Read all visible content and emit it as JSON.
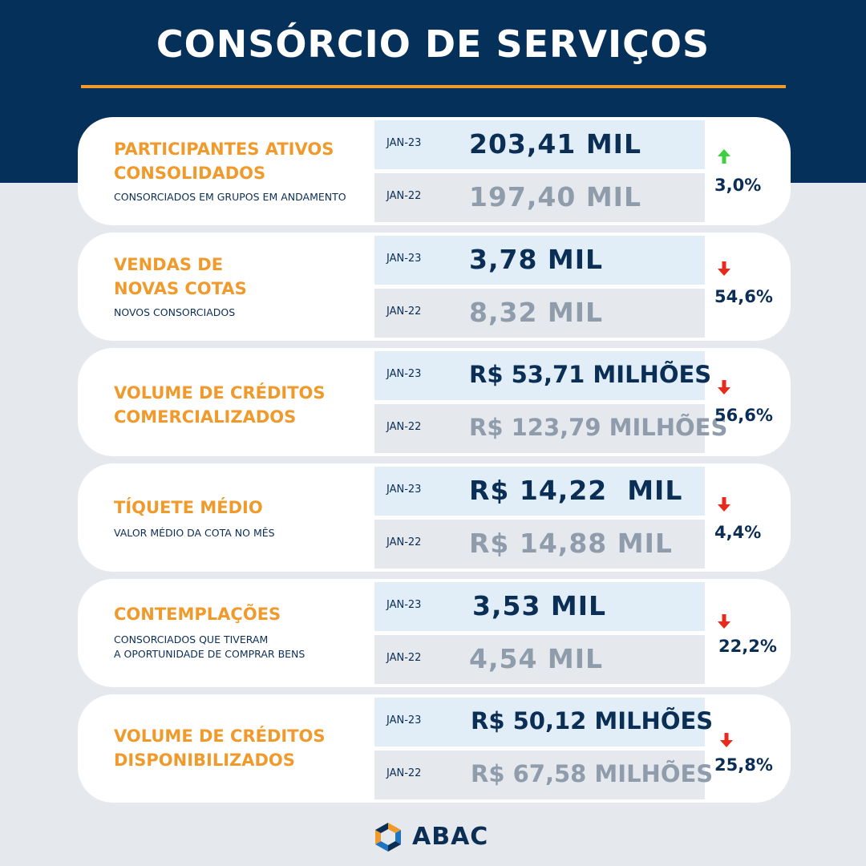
{
  "header": {
    "title": "CONSÓRCIO DE SERVIÇOS"
  },
  "colors": {
    "navy": "#05305a",
    "orange": "#f09a2c",
    "up": "#3cd13c",
    "down": "#e8291c",
    "muted": "#8f9cab"
  },
  "cards": [
    {
      "title": "PARTICIPANTES ATIVOS\nCONSOLIDADOS",
      "subtitle": "CONSORCIADOS EM GRUPOS EM ANDAMENTO",
      "current": {
        "period": "JAN-23",
        "value": "203,41 MIL"
      },
      "previous": {
        "period": "JAN-22",
        "value": "197,40 MIL"
      },
      "change": {
        "direction": "up",
        "icon": "arrow-up-icon",
        "percent": "3,0%"
      }
    },
    {
      "title": "VENDAS DE\nNOVAS COTAS",
      "subtitle": "NOVOS CONSORCIADOS",
      "current": {
        "period": "JAN-23",
        "value": "3,78 MIL"
      },
      "previous": {
        "period": "JAN-22",
        "value": "8,32 MIL"
      },
      "change": {
        "direction": "down",
        "icon": "arrow-down-icon",
        "percent": "54,6%"
      }
    },
    {
      "title": "VOLUME DE CRÉDITOS\nCOMERCIALIZADOS",
      "subtitle": "",
      "current": {
        "period": "JAN-23",
        "value": "R$ 53,71 MILHÕES"
      },
      "previous": {
        "period": "JAN-22",
        "value": "R$ 123,79 MILHÕES"
      },
      "change": {
        "direction": "down",
        "icon": "arrow-down-icon",
        "percent": "56,6%"
      }
    },
    {
      "title": "TÍQUETE MÉDIO",
      "subtitle": "VALOR MÉDIO DA COTA NO MÊS",
      "current": {
        "period": "JAN-23",
        "value": "R$ 14,22  MIL"
      },
      "previous": {
        "period": "JAN-22",
        "value": "R$ 14,88 MIL"
      },
      "change": {
        "direction": "down",
        "icon": "arrow-down-icon",
        "percent": "4,4%"
      }
    },
    {
      "title": "CONTEMPLAÇÕES",
      "subtitle": "CONSORCIADOS QUE TIVERAM\nA OPORTUNIDADE DE COMPRAR BENS",
      "current": {
        "period": "JAN-23",
        "value": "3,53 MIL"
      },
      "previous": {
        "period": "JAN-22",
        "value": "4,54 MIL"
      },
      "change": {
        "direction": "down",
        "icon": "arrow-down-icon",
        "percent": "22,2%"
      }
    },
    {
      "title": "VOLUME DE CRÉDITOS\nDISPONIBILIZADOS",
      "subtitle": "",
      "current": {
        "period": "JAN-23",
        "value": "R$ 50,12 MILHÕES"
      },
      "previous": {
        "period": "JAN-22",
        "value": "R$ 67,58 MILHÕES"
      },
      "change": {
        "direction": "down",
        "icon": "arrow-down-icon",
        "percent": "25,8%"
      }
    }
  ],
  "footer": {
    "logo_text": "ABAC",
    "logo_icon": "abac-logo-icon"
  }
}
